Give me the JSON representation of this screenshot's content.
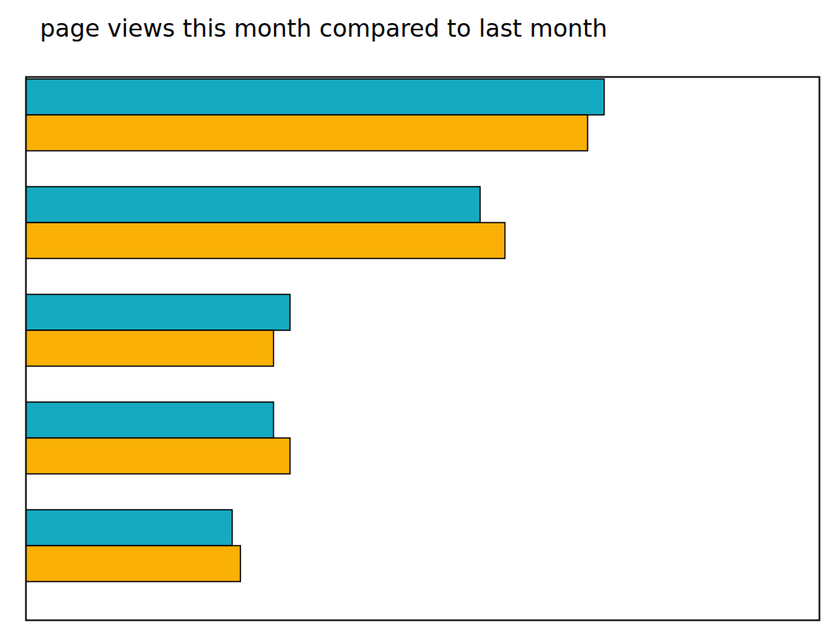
{
  "chart_data": {
    "type": "bar",
    "title": "page views this month compared to last month",
    "orientation": "horizontal",
    "categories": [
      null,
      null,
      null,
      null,
      null
    ],
    "series": [
      {
        "color": "#15aabf",
        "values": [
          70,
          55,
          32,
          30,
          25
        ]
      },
      {
        "color": "#fab005",
        "values": [
          68,
          58,
          30,
          32,
          26
        ]
      }
    ],
    "xlim": [
      0,
      96
    ],
    "tick_labels": false,
    "grid": false
  }
}
